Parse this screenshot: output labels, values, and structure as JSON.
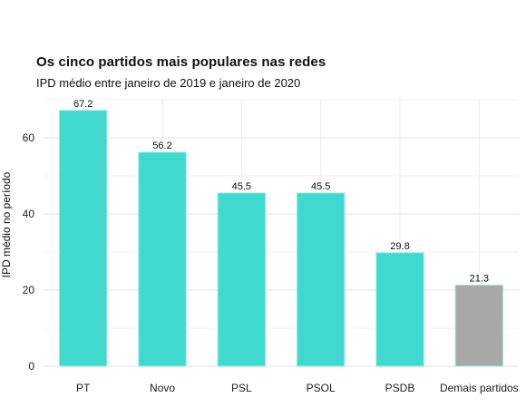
{
  "chart_data": {
    "type": "bar",
    "title": "Os cinco partidos mais populares nas redes",
    "subtitle": "IPD médio entre janeiro de 2019 e janeiro de 2020",
    "ylabel": "IPD médio no período",
    "xlabel": "",
    "categories": [
      "PT",
      "Novo",
      "PSL",
      "PSOL",
      "PSDB",
      "Demais partidos"
    ],
    "values": [
      67.2,
      56.2,
      45.5,
      45.5,
      29.8,
      21.3
    ],
    "data_labels": [
      "67.2",
      "56.2",
      "45.5",
      "45.5",
      "29.8",
      "21.3"
    ],
    "colors": [
      "#3fd9d0",
      "#3fd9d0",
      "#3fd9d0",
      "#3fd9d0",
      "#3fd9d0",
      "#a8a8a8"
    ],
    "ylim": [
      0,
      70
    ],
    "yticks": [
      0,
      20,
      40,
      60
    ],
    "grid": true
  }
}
